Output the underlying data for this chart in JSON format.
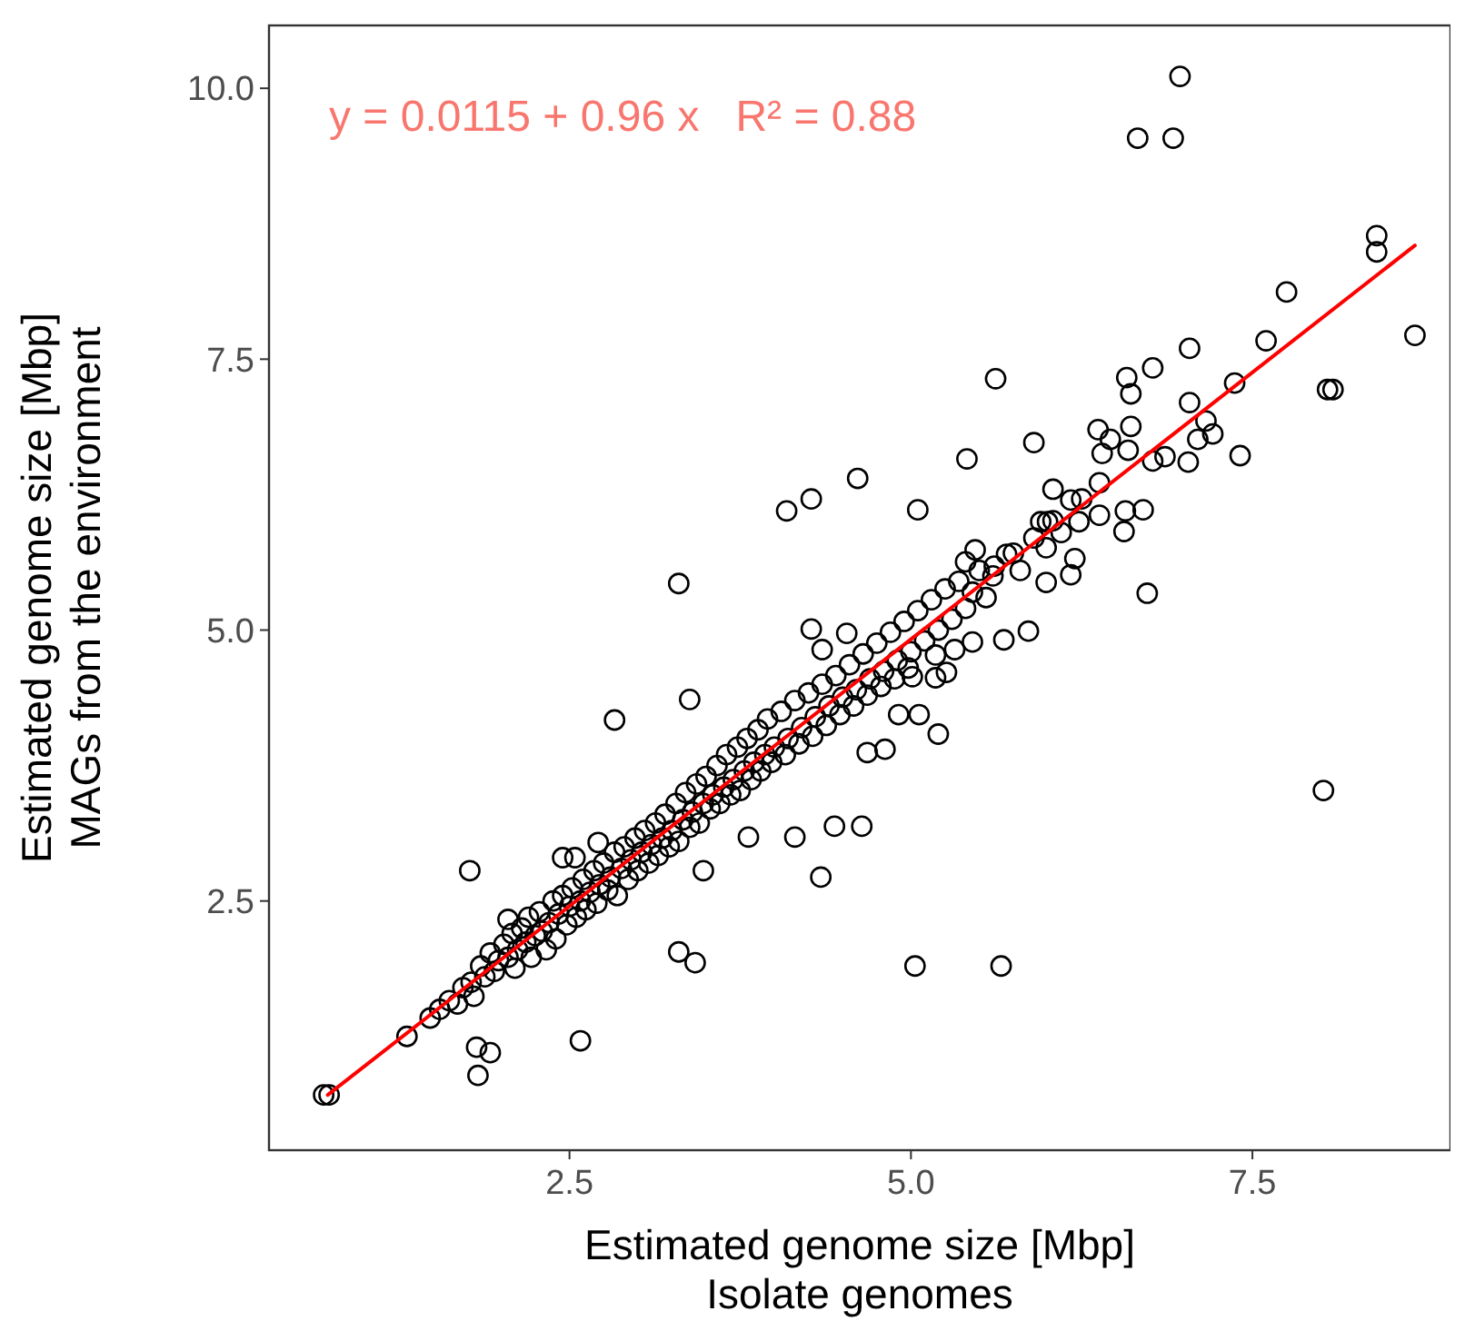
{
  "chart_data": {
    "type": "scatter",
    "xlabel": "Estimated genome size [Mbp]\nIsolate genomes",
    "ylabel": "Estimated genome size [Mbp]\nMAGs from the environment",
    "xlim": [
      0.3,
      8.95
    ],
    "ylim": [
      0.2,
      10.58
    ],
    "xticks": [
      2.5,
      {
        "value": 5,
        "label": "5.0"
      },
      7.5
    ],
    "yticks": [
      2.5,
      {
        "value": 5,
        "label": "5.0"
      },
      7.5,
      {
        "value": 10,
        "label": "10.0"
      }
    ],
    "grid": false,
    "marker": "circle",
    "annotations": [
      "y = 0.0115 + 0.96 x   R² = 0.88"
    ],
    "series": [
      {
        "color": "#000000",
        "x": [
          0.7,
          0.74,
          1.31,
          1.82,
          1.92,
          1.83,
          2.58,
          1.77,
          2.83,
          3.3,
          3.38,
          4.09,
          4.27,
          4.61,
          6.97,
          6.66,
          6.92,
          8.41,
          8.41,
          8.69,
          7.75,
          7.6,
          7.37,
          8.05,
          8.09,
          7.04,
          6.77,
          6.58,
          6.61,
          7.04,
          7.16,
          7.1,
          7.21,
          7.41,
          7.03,
          6.77,
          6.86,
          6.59,
          6.4,
          6.37,
          6.61,
          6.46,
          5.9,
          5.62,
          5.41,
          5.05,
          6.38,
          6.04,
          6.17,
          6.25,
          6.38,
          6.57,
          6.7,
          6.56,
          6.23,
          5.95,
          6.04,
          5.99,
          6.2,
          6.17,
          5.75,
          5.61,
          5.47,
          5.4,
          5.99,
          6.73,
          5.86,
          5.68,
          5.45,
          5.32,
          5.18,
          5.01,
          5.18,
          5.26,
          4.91,
          5.06,
          5.2,
          4.81,
          4.68,
          4.64,
          8.02,
          5.03,
          5.66,
          4.27,
          4.53,
          4.35,
          2.45,
          2.54,
          2.71,
          3.48,
          4.34,
          4.44,
          4.15,
          3.81,
          3.3,
          3.42,
          2.05,
          1.48,
          1.55,
          1.62,
          1.68,
          1.72,
          1.78,
          1.8,
          1.85,
          1.88,
          1.92,
          1.95,
          1.98,
          2.02,
          2.05,
          2.08,
          2.1,
          2.12,
          2.15,
          2.18,
          2.2,
          2.22,
          2.25,
          2.28,
          2.3,
          2.33,
          2.35,
          2.38,
          2.4,
          2.42,
          2.45,
          2.48,
          2.5,
          2.52,
          2.55,
          2.58,
          2.6,
          2.62,
          2.65,
          2.68,
          2.7,
          2.72,
          2.75,
          2.78,
          2.8,
          2.83,
          2.85,
          2.88,
          2.9,
          2.93,
          2.95,
          2.98,
          3.0,
          3.03,
          3.05,
          3.08,
          3.1,
          3.13,
          3.15,
          3.18,
          3.2,
          3.23,
          3.25,
          3.28,
          3.3,
          3.33,
          3.35,
          3.38,
          3.4,
          3.43,
          3.45,
          3.48,
          3.5,
          3.53,
          3.55,
          3.58,
          3.6,
          3.63,
          3.65,
          3.68,
          3.7,
          3.73,
          3.75,
          3.78,
          3.8,
          3.83,
          3.85,
          3.88,
          3.9,
          3.93,
          3.95,
          3.98,
          4.0,
          4.05,
          4.08,
          4.1,
          4.15,
          4.18,
          4.2,
          4.25,
          4.28,
          4.3,
          4.35,
          4.38,
          4.4,
          4.45,
          4.48,
          4.5,
          4.55,
          4.58,
          4.6,
          4.65,
          4.68,
          4.7,
          4.75,
          4.78,
          4.8,
          4.85,
          4.88,
          4.9,
          4.95,
          4.98,
          5.0,
          5.05,
          5.1,
          5.15,
          5.2,
          5.25,
          5.3,
          5.35,
          5.4,
          5.45,
          5.5,
          5.55,
          5.6,
          5.7,
          5.8,
          5.9,
          6.0,
          6.1
        ],
        "values": [
          0.71,
          0.71,
          1.25,
          1.15,
          1.1,
          0.89,
          1.21,
          2.78,
          4.17,
          5.43,
          4.36,
          6.1,
          6.21,
          6.4,
          10.11,
          9.54,
          9.54,
          8.64,
          8.49,
          7.72,
          8.12,
          7.67,
          7.28,
          7.22,
          7.22,
          7.6,
          7.42,
          7.33,
          7.18,
          7.1,
          6.93,
          6.76,
          6.81,
          6.61,
          6.55,
          6.56,
          6.6,
          6.66,
          6.63,
          6.85,
          6.88,
          6.76,
          6.73,
          7.32,
          6.58,
          6.11,
          6.36,
          6.3,
          6.2,
          6.21,
          6.06,
          6.1,
          6.11,
          5.91,
          6.0,
          6.0,
          6.01,
          5.76,
          5.66,
          5.51,
          5.71,
          5.59,
          5.74,
          5.63,
          5.44,
          5.34,
          4.99,
          4.91,
          4.89,
          4.82,
          4.77,
          4.57,
          4.56,
          4.61,
          4.22,
          4.22,
          4.04,
          3.9,
          3.87,
          3.19,
          3.52,
          1.9,
          1.9,
          5.01,
          4.97,
          4.82,
          2.9,
          2.9,
          3.04,
          2.78,
          2.72,
          3.19,
          3.09,
          3.09,
          2.03,
          1.93,
          2.33,
          1.42,
          1.5,
          1.58,
          1.55,
          1.7,
          1.75,
          1.62,
          1.9,
          1.8,
          2.02,
          1.85,
          1.95,
          2.1,
          1.98,
          2.2,
          1.88,
          2.05,
          2.25,
          2.12,
          2.35,
          1.98,
          2.18,
          2.4,
          2.22,
          2.05,
          2.3,
          2.5,
          2.15,
          2.38,
          2.55,
          2.28,
          2.45,
          2.62,
          2.35,
          2.5,
          2.7,
          2.42,
          2.58,
          2.78,
          2.48,
          2.65,
          2.85,
          2.6,
          2.72,
          2.95,
          2.55,
          2.8,
          3.0,
          2.7,
          2.88,
          3.08,
          2.78,
          2.95,
          3.15,
          2.85,
          3.02,
          3.22,
          2.92,
          3.08,
          3.3,
          3.0,
          3.15,
          3.4,
          3.05,
          3.25,
          3.5,
          3.18,
          3.32,
          3.58,
          3.22,
          3.4,
          3.65,
          3.35,
          3.48,
          3.75,
          3.4,
          3.55,
          3.85,
          3.48,
          3.62,
          3.92,
          3.52,
          3.7,
          4.0,
          3.62,
          3.78,
          4.08,
          3.7,
          3.85,
          4.18,
          3.78,
          3.92,
          4.25,
          3.85,
          4.0,
          4.35,
          3.95,
          4.1,
          4.42,
          4.02,
          4.2,
          4.5,
          4.12,
          4.3,
          4.58,
          4.22,
          4.38,
          4.68,
          4.3,
          4.45,
          4.78,
          4.4,
          4.55,
          4.88,
          4.48,
          4.62,
          4.98,
          4.55,
          4.72,
          5.08,
          4.65,
          4.8,
          5.18,
          4.9,
          5.28,
          5.0,
          5.38,
          5.1,
          5.45,
          5.2,
          5.35,
          5.55,
          5.3,
          5.5,
          5.7,
          5.55,
          5.85,
          6.0,
          5.9
        ]
      },
      {
        "type": "line",
        "marker": "none",
        "color": "#ff0000",
        "x": [
          0.73,
          8.69
        ],
        "values": [
          0.71,
          8.55
        ]
      }
    ]
  }
}
